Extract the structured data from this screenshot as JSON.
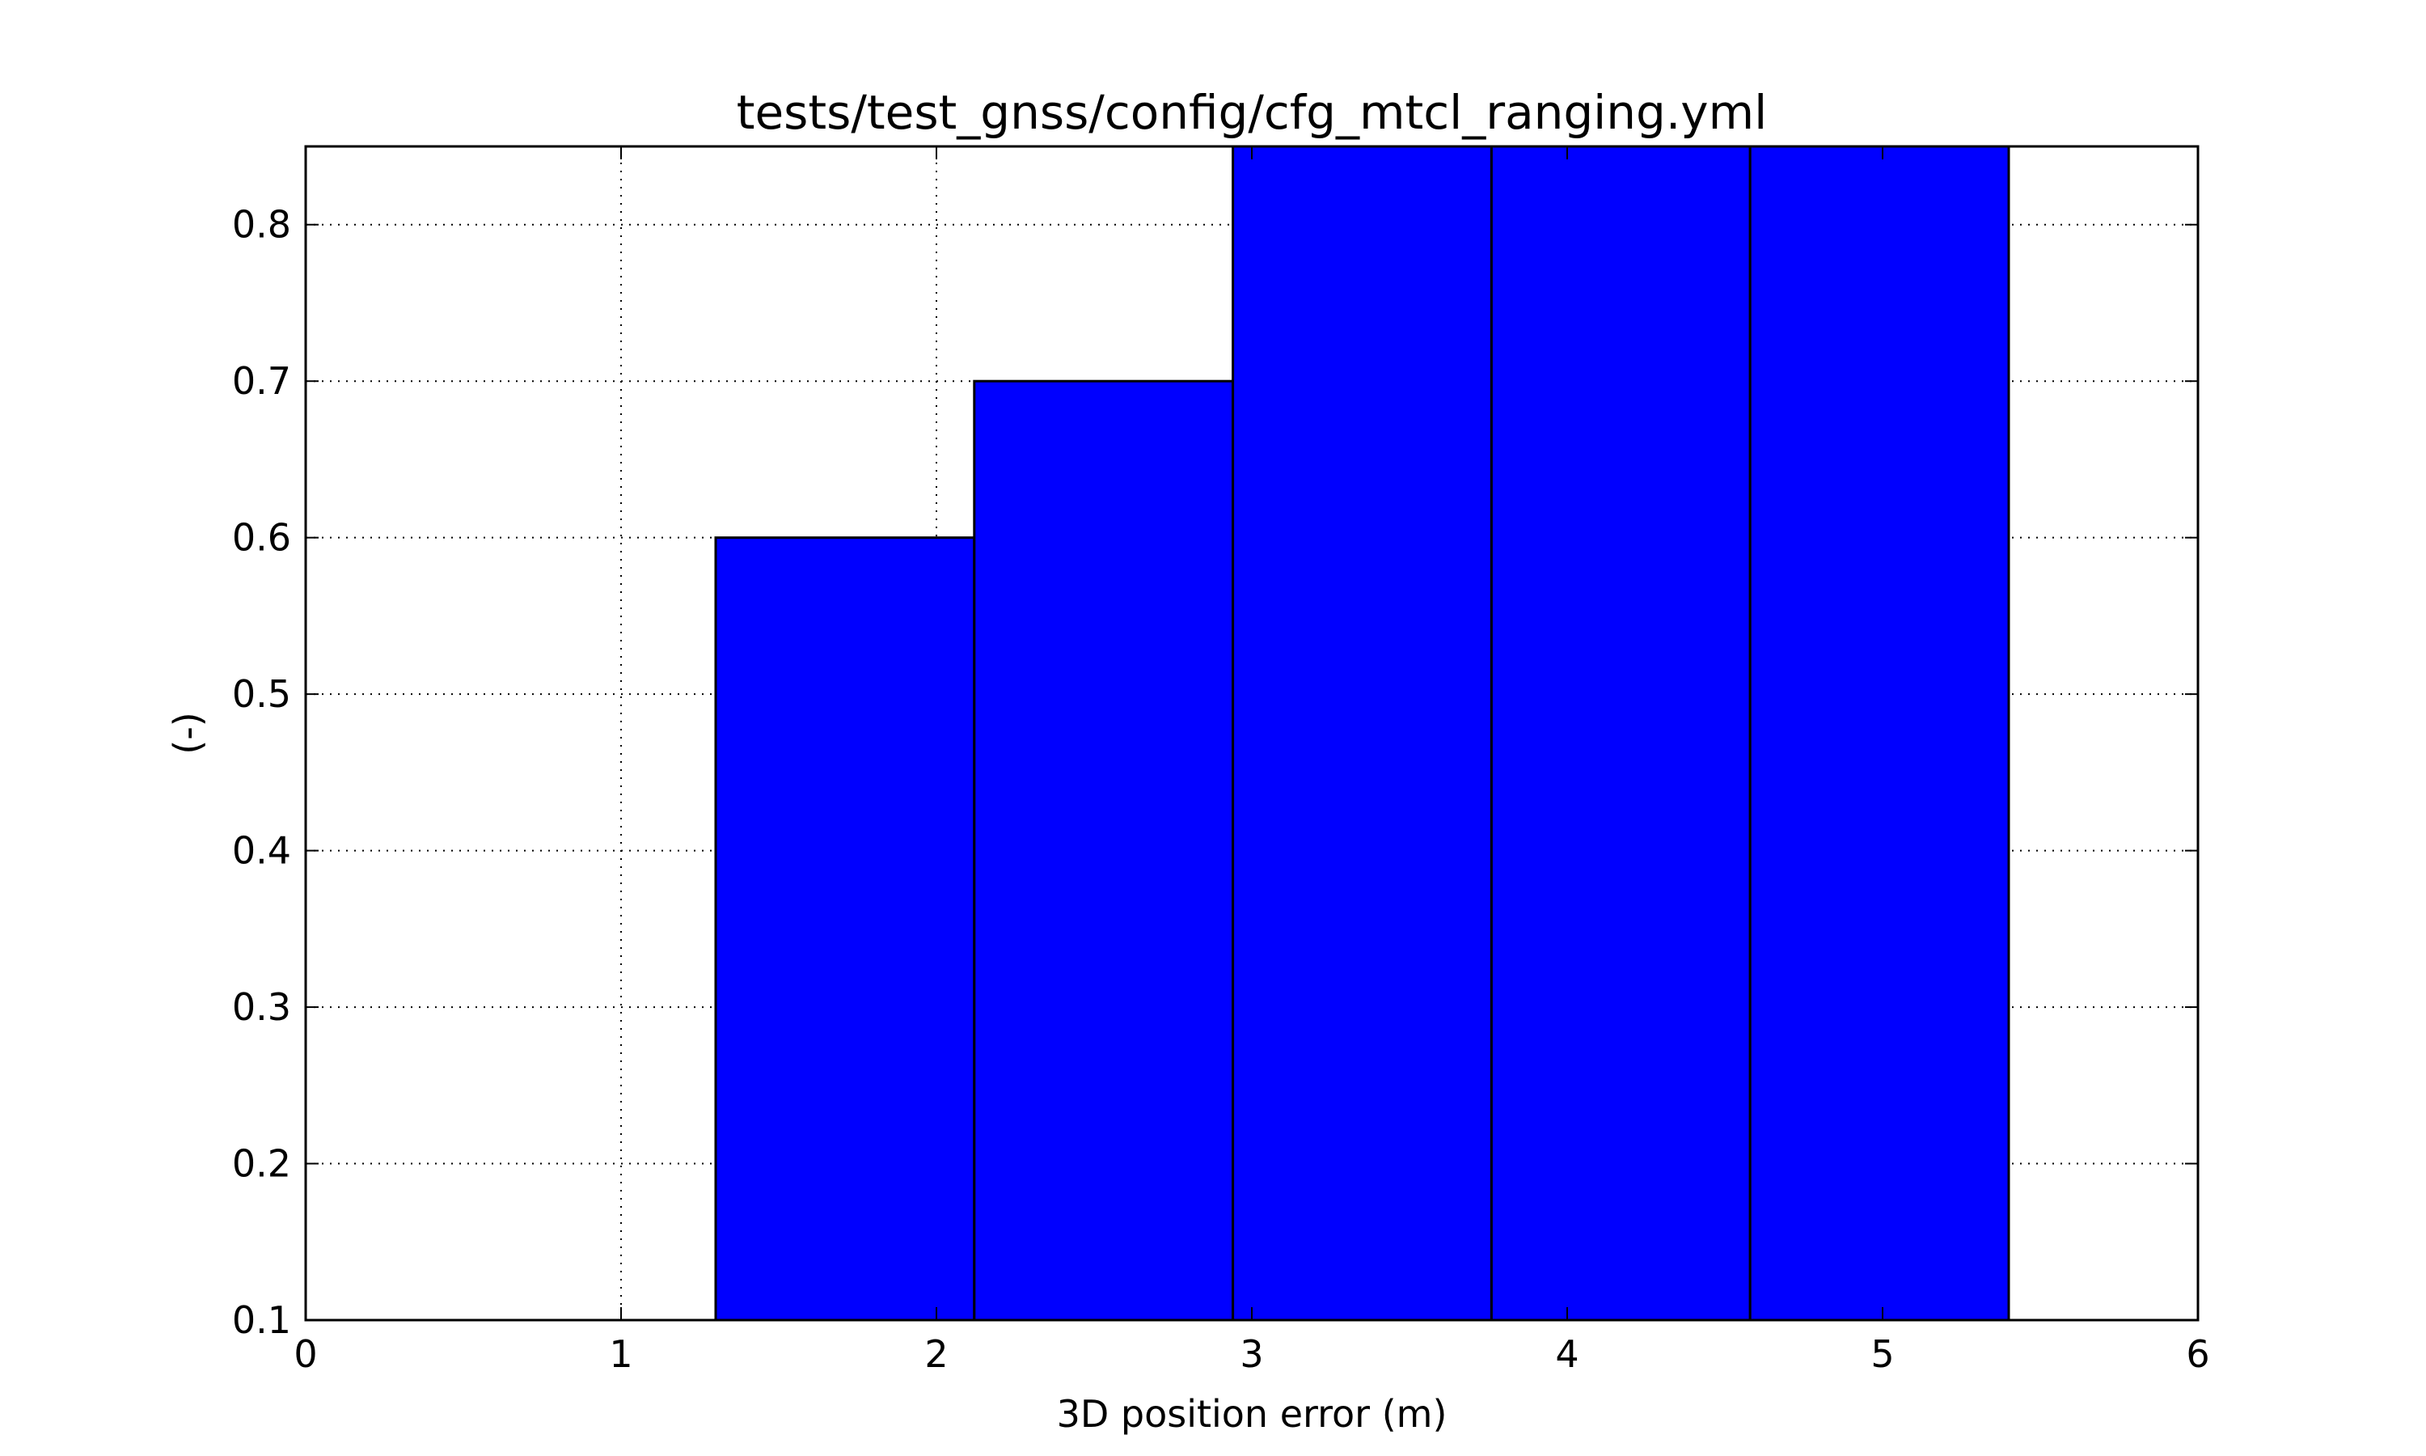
{
  "chart_data": {
    "type": "bar",
    "title": "tests/test_gnss/config/cfg_mtcl_ranging.yml",
    "xlabel": "3D position error (m)",
    "ylabel": "(-)",
    "xlim": [
      0,
      6
    ],
    "ylim": [
      0.1,
      0.85
    ],
    "xticks": [
      "0",
      "1",
      "2",
      "3",
      "4",
      "5",
      "6"
    ],
    "yticks": [
      "0.1",
      "0.2",
      "0.3",
      "0.4",
      "0.5",
      "0.6",
      "0.7",
      "0.8"
    ],
    "grid": true,
    "bar_color": "#0000ff",
    "bars": [
      {
        "x0": 1.3,
        "x1": 2.12,
        "value": 0.6
      },
      {
        "x0": 2.12,
        "x1": 2.94,
        "value": 0.7
      },
      {
        "x0": 2.94,
        "x1": 3.76,
        "value": 0.85
      },
      {
        "x0": 3.76,
        "x1": 4.58,
        "value": 0.85
      },
      {
        "x0": 4.58,
        "x1": 5.4,
        "value": 0.85
      }
    ]
  }
}
